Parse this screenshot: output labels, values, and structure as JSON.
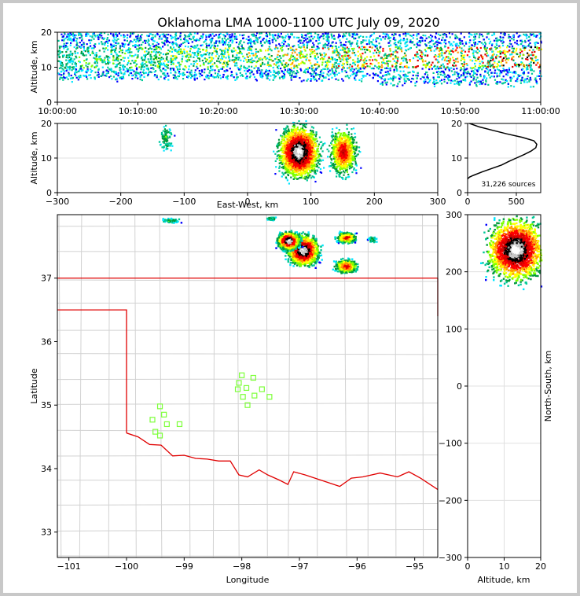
{
  "chart_data": [
    {
      "name": "time-altitude",
      "type": "heatmap",
      "title": "Oklahoma LMA 1000-1100 UTC July 09, 2020",
      "xlabel": "",
      "ylabel": "Altitude, km",
      "x_ticks": [
        "10:00:00",
        "10:10:00",
        "10:20:00",
        "10:30:00",
        "10:40:00",
        "10:50:00",
        "11:00:00"
      ],
      "xlim_minutes": [
        0,
        60
      ],
      "ylim": [
        0,
        20
      ],
      "y_ticks": [
        0,
        10,
        20
      ],
      "band_km": [
        6,
        20
      ],
      "core_km": [
        10,
        16
      ]
    },
    {
      "name": "east-west-altitude",
      "type": "heatmap",
      "xlabel": "East-West, km",
      "ylabel": "Altitude, km",
      "xlim": [
        -300,
        300
      ],
      "x_ticks": [
        -300,
        -200,
        -100,
        0,
        100,
        200,
        300
      ],
      "ylim": [
        0,
        20
      ],
      "y_ticks": [
        0,
        10,
        20
      ],
      "clusters": [
        {
          "x_center": -130,
          "x_width": 20,
          "alt_center": 16,
          "alt_width": 8,
          "density": "low"
        },
        {
          "x_center": 80,
          "x_width": 60,
          "alt_center": 12,
          "alt_width": 16,
          "density": "high"
        },
        {
          "x_center": 150,
          "x_width": 40,
          "alt_center": 12,
          "alt_width": 14,
          "density": "medium"
        }
      ]
    },
    {
      "name": "altitude-histogram",
      "type": "line",
      "xlim": [
        0,
        750
      ],
      "x_ticks": [
        0,
        500
      ],
      "ylim": [
        0,
        20
      ],
      "y_ticks": [
        0,
        10,
        20
      ],
      "annotation": "31,226 sources",
      "profile": [
        [
          0,
          4
        ],
        [
          20,
          4.5
        ],
        [
          60,
          5
        ],
        [
          150,
          6
        ],
        [
          250,
          7
        ],
        [
          350,
          8
        ],
        [
          420,
          9
        ],
        [
          500,
          10
        ],
        [
          580,
          11
        ],
        [
          650,
          12
        ],
        [
          700,
          13
        ],
        [
          710,
          14
        ],
        [
          680,
          15
        ],
        [
          560,
          16
        ],
        [
          400,
          17
        ],
        [
          260,
          18
        ],
        [
          120,
          19
        ],
        [
          20,
          20
        ]
      ]
    },
    {
      "name": "plan-view-map",
      "type": "scatter",
      "xlabel": "Longitude",
      "ylabel": "Latitude",
      "xlim": [
        -101.2,
        -94.6
      ],
      "ylim": [
        32.6,
        38.0
      ],
      "x_ticks": [
        -101,
        -100,
        -99,
        -98,
        -97,
        -96,
        -95
      ],
      "y_ticks": [
        33,
        34,
        35,
        36,
        37
      ],
      "stations": [
        [
          -99.42,
          34.98
        ],
        [
          -99.35,
          34.85
        ],
        [
          -99.55,
          34.77
        ],
        [
          -99.3,
          34.7
        ],
        [
          -99.5,
          34.58
        ],
        [
          -99.42,
          34.52
        ],
        [
          -99.08,
          34.7
        ],
        [
          -98.0,
          35.47
        ],
        [
          -97.8,
          35.43
        ],
        [
          -98.05,
          35.35
        ],
        [
          -97.92,
          35.27
        ],
        [
          -98.07,
          35.25
        ],
        [
          -97.65,
          35.25
        ],
        [
          -97.98,
          35.13
        ],
        [
          -97.78,
          35.15
        ],
        [
          -97.52,
          35.13
        ],
        [
          -97.9,
          35.0
        ]
      ],
      "clusters": [
        {
          "lon": -96.95,
          "lat": 37.45,
          "lon_w": 0.5,
          "lat_w": 0.45,
          "density": "high"
        },
        {
          "lon": -97.2,
          "lat": 37.6,
          "lon_w": 0.35,
          "lat_w": 0.25,
          "density": "high"
        },
        {
          "lon": -96.2,
          "lat": 37.65,
          "lon_w": 0.3,
          "lat_w": 0.15,
          "density": "medium"
        },
        {
          "lon": -96.2,
          "lat": 37.2,
          "lon_w": 0.35,
          "lat_w": 0.2,
          "density": "medium"
        },
        {
          "lon": -99.25,
          "lat": 37.92,
          "lon_w": 0.3,
          "lat_w": 0.06,
          "density": "low"
        },
        {
          "lon": -97.5,
          "lat": 37.95,
          "lon_w": 0.15,
          "lat_w": 0.05,
          "density": "low"
        },
        {
          "lon": -95.75,
          "lat": 37.62,
          "lon_w": 0.12,
          "lat_w": 0.08,
          "density": "low"
        }
      ]
    },
    {
      "name": "altitude-north-south",
      "type": "heatmap",
      "xlabel": "Altitude, km",
      "ylabel": "North-South, km",
      "xlim": [
        0,
        20
      ],
      "x_ticks": [
        0,
        10,
        20
      ],
      "ylim": [
        -300,
        300
      ],
      "y_ticks": [
        -300,
        -200,
        -100,
        0,
        100,
        200,
        300
      ],
      "cluster": {
        "alt_center": 13,
        "alt_width": 16,
        "ns_center": 240,
        "ns_width": 110
      }
    }
  ]
}
